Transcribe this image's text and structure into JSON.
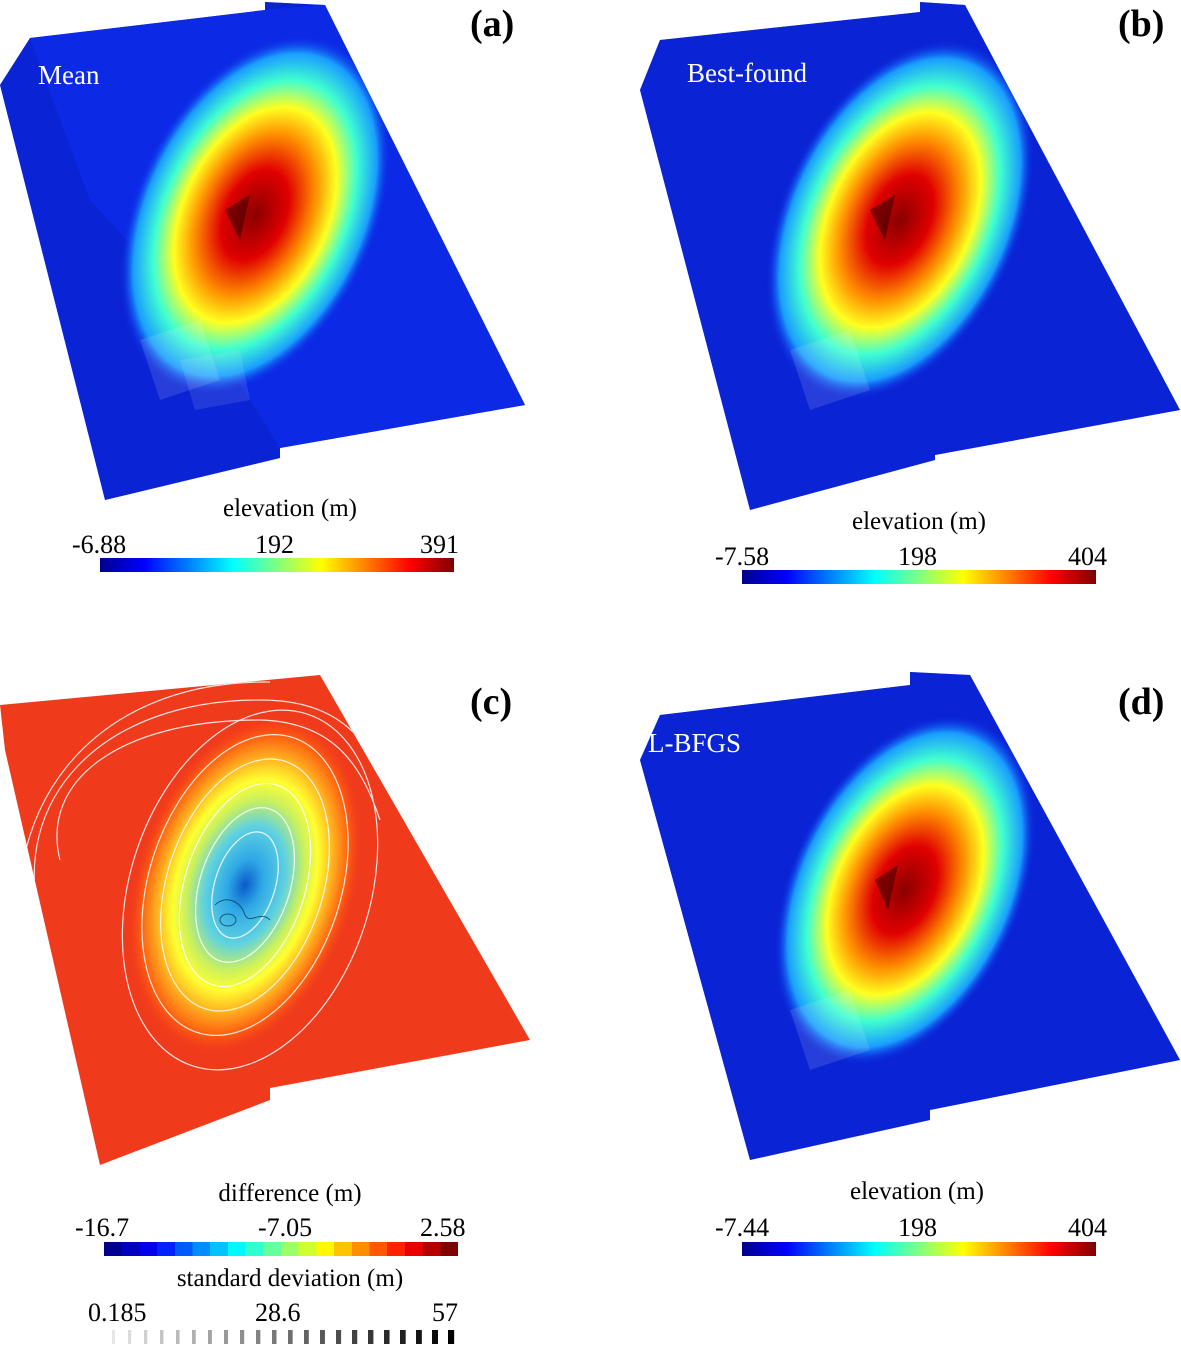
{
  "colors": {
    "jet": [
      "#00008f",
      "#0000ff",
      "#0080ff",
      "#00ffff",
      "#80ff80",
      "#ffff00",
      "#ff8000",
      "#ff0000",
      "#800000"
    ],
    "surface_base": "#0b28e6",
    "diff_base": "#f03a1c",
    "contour": "#ffffff"
  },
  "panels": {
    "a": {
      "letter": "(a)",
      "title": "Mean",
      "colorbar": {
        "title": "elevation (m)",
        "min": "-6.88",
        "mid": "192",
        "max": "391",
        "vmin": -6.88,
        "vmid": 192,
        "vmax": 391
      }
    },
    "b": {
      "letter": "(b)",
      "title": "Best-found",
      "colorbar": {
        "title": "elevation (m)",
        "min": "-7.58",
        "mid": "198",
        "max": "404",
        "vmin": -7.58,
        "vmid": 198,
        "vmax": 404
      }
    },
    "c": {
      "letter": "(c)",
      "colorbar": {
        "title": "difference (m)",
        "min": "-16.7",
        "mid": "-7.05",
        "max": "2.58",
        "vmin": -16.7,
        "vmid": -7.05,
        "vmax": 2.58
      },
      "std_bar": {
        "title": "standard deviation (m)",
        "min": "0.185",
        "mid": "28.6",
        "max": "57",
        "vmin": 0.185,
        "vmid": 28.6,
        "vmax": 57
      }
    },
    "d": {
      "letter": "(d)",
      "title": "L-BFGS",
      "colorbar": {
        "title": "elevation (m)",
        "min": "-7.44",
        "mid": "198",
        "max": "404",
        "vmin": -7.44,
        "vmid": 198,
        "vmax": 404
      }
    }
  }
}
